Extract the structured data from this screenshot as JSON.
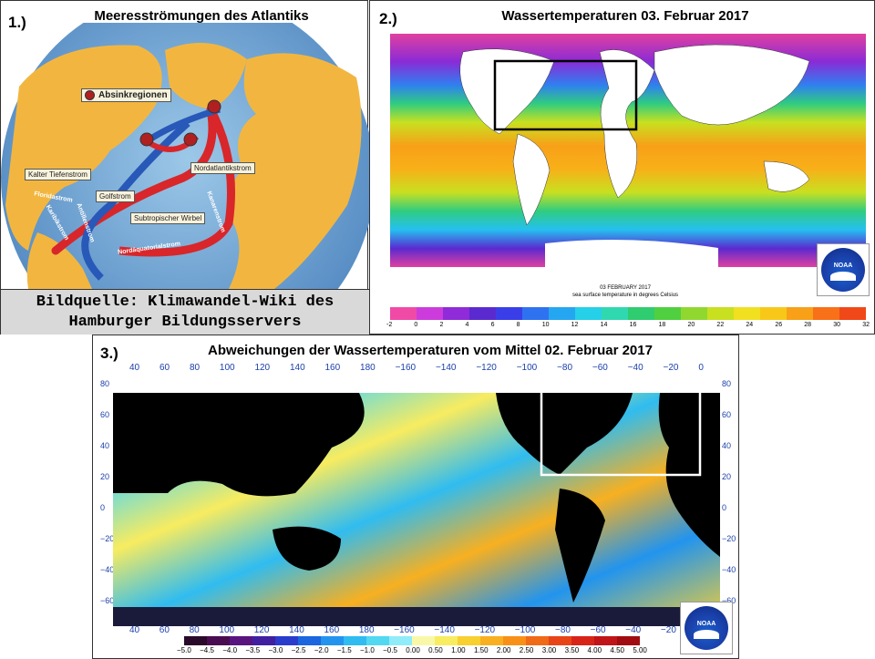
{
  "panel1": {
    "number": "1.)",
    "title": "Meeresströmungen des Atlantiks",
    "legend": "Absinkregionen",
    "labels": {
      "kalter_tiefenstrom": "Kalter Tiefenstrom",
      "nordatlantikstrom": "Nordatlantikstrom",
      "golfstrom": "Golfstrom",
      "floridastrom": "Floridastrom",
      "antillenstrom": "Antillenstrom",
      "karibikstrom": "Karibikstrom",
      "subtropischer_wirbel": "Subtropischer Wirbel",
      "nordaequatorialstrom": "Nordäquatorialstrom",
      "kanarenstrom": "Kanarenstrom"
    },
    "credit_line1": "Bildquelle: Klimawandel-Wiki des",
    "credit_line2": "Hamburger Bildungsservers"
  },
  "panel2": {
    "number": "2.)",
    "title": "Wassertemperaturen 03. Februar 2017",
    "logo": "NOAA",
    "map_caption": "sea surface temperature in degrees Celsius",
    "map_date": "03 FEBRUARY 2017",
    "colorbar_ticks": [
      "-2",
      "0",
      "2",
      "4",
      "6",
      "8",
      "10",
      "12",
      "14",
      "16",
      "18",
      "20",
      "22",
      "24",
      "26",
      "28",
      "30",
      "32"
    ],
    "colors": [
      "#f04aa6",
      "#cc3cdc",
      "#8f2bd8",
      "#5a2ad0",
      "#3a3ee8",
      "#2f72f0",
      "#25a6f0",
      "#25d0e8",
      "#30d8b0",
      "#30cc70",
      "#50d040",
      "#90d830",
      "#c8e020",
      "#f0e020",
      "#f8c818",
      "#f8a018",
      "#f87018",
      "#f04818"
    ]
  },
  "panel3": {
    "number": "3.)",
    "title": "Abweichungen der Wassertemperaturen vom Mittel 02. Februar 2017",
    "logo": "NOAA",
    "top_axis": [
      "40",
      "60",
      "80",
      "100",
      "120",
      "140",
      "160",
      "180",
      "−160",
      "−140",
      "−120",
      "−100",
      "−80",
      "−60",
      "−40",
      "−20",
      "0"
    ],
    "bottom_axis": [
      "40",
      "60",
      "80",
      "100",
      "120",
      "140",
      "160",
      "180",
      "−160",
      "−140",
      "−120",
      "−100",
      "−80",
      "−60",
      "−40",
      "−20"
    ],
    "left_axis": [
      "80",
      "60",
      "40",
      "20",
      "0",
      "−20",
      "−40",
      "−60"
    ],
    "right_axis": [
      "80",
      "60",
      "40",
      "20",
      "0",
      "−20",
      "−40",
      "−60"
    ],
    "colorbar_ticks": [
      "−5.0",
      "−4.5",
      "−4.0",
      "−3.5",
      "−3.0",
      "−2.5",
      "−2.0",
      "−1.5",
      "−1.0",
      "−0.5",
      "0.00",
      "0.50",
      "1.00",
      "1.50",
      "2.00",
      "2.50",
      "3.00",
      "3.50",
      "4.00",
      "4.50",
      "5.00"
    ],
    "colors": [
      "#2a0a2a",
      "#4a0c50",
      "#5a1480",
      "#4020a0",
      "#2a3ccc",
      "#1c66e0",
      "#2294ee",
      "#30bcf0",
      "#52d8f0",
      "#90ecf8",
      "#f8f8a8",
      "#f8ec60",
      "#f8d030",
      "#f8b020",
      "#f89018",
      "#f06a18",
      "#e84418",
      "#d82418",
      "#c01418",
      "#a00c10"
    ]
  }
}
